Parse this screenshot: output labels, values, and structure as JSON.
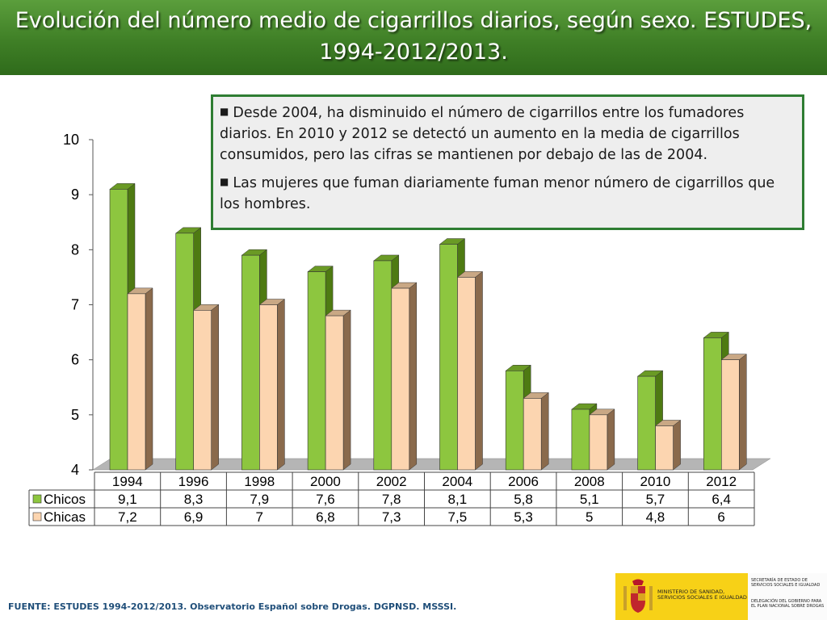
{
  "header": {
    "title": "Evolución del número medio de cigarrillos diarios, según sexo.  ESTUDES, 1994-2012/2013."
  },
  "notes": [
    "Desde 2004, ha disminuido el número de cigarrillos entre los fumadores diarios. En 2010 y 2012 se detectó un aumento en la media de cigarrillos consumidos, pero las cifras se mantienen por debajo de las de  2004.",
    "Las mujeres que fuman diariamente fuman menor número de cigarrillos que los hombres."
  ],
  "chart_data": {
    "type": "bar",
    "categories": [
      "1994",
      "1996",
      "1998",
      "2000",
      "2002",
      "2004",
      "2006",
      "2008",
      "2010",
      "2012"
    ],
    "series": [
      {
        "name": "Chicos",
        "values": [
          9.1,
          8.3,
          7.9,
          7.6,
          7.8,
          8.1,
          5.8,
          5.1,
          5.7,
          6.4
        ],
        "labels": [
          "9,1",
          "8,3",
          "7,9",
          "7,6",
          "7,8",
          "8,1",
          "5,8",
          "5,1",
          "5,7",
          "6,4"
        ],
        "color": "#8dc63f"
      },
      {
        "name": "Chicas",
        "values": [
          7.2,
          6.9,
          7,
          6.8,
          7.3,
          7.5,
          5.3,
          5,
          4.8,
          6
        ],
        "labels": [
          "7,2",
          "6,9",
          "7",
          "6,8",
          "7,3",
          "7,5",
          "5,3",
          "5",
          "4,8",
          "6"
        ],
        "color": "#fcd5b0"
      }
    ],
    "y_ticks": [
      "4",
      "5",
      "6",
      "7",
      "8",
      "9",
      "10"
    ],
    "ylim": [
      4,
      10
    ],
    "title": "",
    "xlabel": "",
    "ylabel": "",
    "data_table": true,
    "gridlines": false
  },
  "footer": {
    "source": "FUENTE: ESTUDES 1994-2012/2013. Observatorio Español sobre Drogas. DGPNSD. MSSSI."
  },
  "logo": {
    "ministry": "MINISTERIO DE SANIDAD, SERVICIOS SOCIALES E IGUALDAD",
    "secretaria": "SECRETARÍA DE ESTADO DE SERVICIOS SOCIALES E IGUALDAD",
    "delegacion": "DELEGACIÓN DEL GOBIERNO PARA EL PLAN NACIONAL SOBRE DROGAS"
  }
}
